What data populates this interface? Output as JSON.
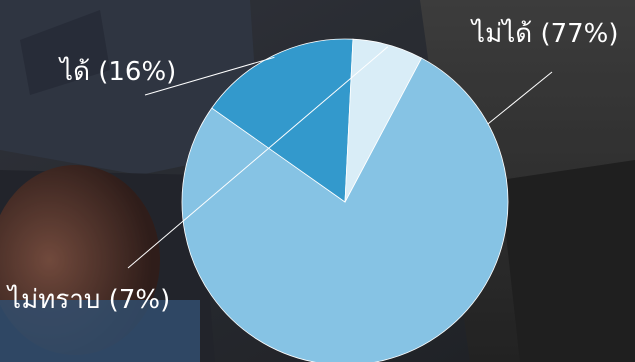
{
  "chart_data": {
    "type": "pie",
    "slices": [
      {
        "label": "ไม่ได้",
        "value": 77,
        "display": "ไม่ได้ (77%)",
        "color": "#86c3e4"
      },
      {
        "label": "ได้",
        "value": 16,
        "display": "ได้ (16%)",
        "color": "#3399cc"
      },
      {
        "label": "ไม่ทราบ",
        "value": 7,
        "display": "ไม่ทราบ (7%)",
        "color": "#d9edf7"
      }
    ],
    "start_angle_deg": -62,
    "direction": "clockwise",
    "legend": "none",
    "label_line_color": "#ffffff"
  }
}
